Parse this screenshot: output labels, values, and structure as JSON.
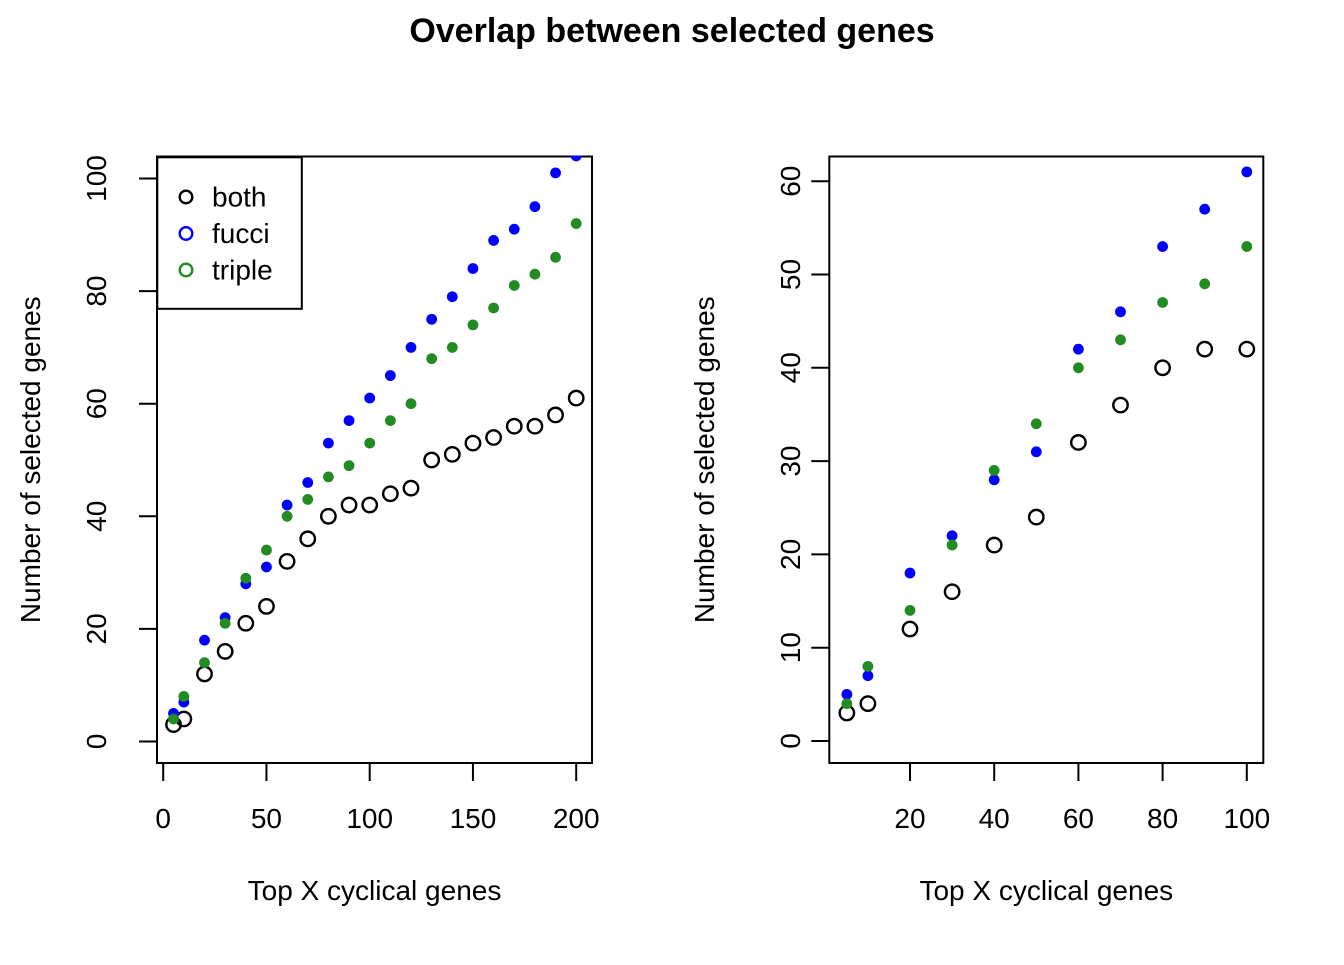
{
  "title": "Overlap between selected genes",
  "colors": {
    "both": "#000000",
    "fucci": "#0000FF",
    "triple": "#228B22"
  },
  "chart_data": [
    {
      "type": "scatter",
      "panel": "left",
      "xlabel": "Top X cyclical genes",
      "ylabel": "Number of selected genes",
      "x": [
        5,
        10,
        20,
        30,
        40,
        50,
        60,
        70,
        80,
        90,
        100,
        110,
        120,
        130,
        140,
        150,
        160,
        170,
        180,
        190,
        200
      ],
      "series": [
        {
          "name": "both",
          "color": "#000000",
          "plot_marker": "open-circle",
          "values": [
            3,
            4,
            12,
            16,
            21,
            24,
            32,
            36,
            40,
            42,
            42,
            44,
            45,
            50,
            51,
            53,
            54,
            56,
            56,
            58,
            61
          ]
        },
        {
          "name": "fucci",
          "color": "#0000FF",
          "plot_marker": "filled-circle",
          "values": [
            5,
            7,
            18,
            22,
            28,
            31,
            42,
            46,
            53,
            57,
            61,
            65,
            70,
            75,
            79,
            84,
            89,
            91,
            95,
            101,
            104
          ]
        },
        {
          "name": "triple",
          "color": "#228B22",
          "plot_marker": "filled-circle",
          "values": [
            4,
            8,
            14,
            21,
            29,
            34,
            40,
            43,
            47,
            49,
            53,
            57,
            60,
            68,
            70,
            74,
            77,
            81,
            83,
            86,
            92
          ]
        }
      ],
      "xticks": [
        0,
        50,
        100,
        150,
        200
      ],
      "yticks": [
        0,
        20,
        40,
        60,
        80,
        100
      ],
      "xlim": [
        0,
        200
      ],
      "ylim": [
        0,
        104
      ],
      "grid": false,
      "legend": {
        "position": "top-left",
        "marker": "open-circle",
        "entries": [
          {
            "label": "both",
            "color": "#000000"
          },
          {
            "label": "fucci",
            "color": "#0000FF"
          },
          {
            "label": "triple",
            "color": "#228B22"
          }
        ]
      }
    },
    {
      "type": "scatter",
      "panel": "right",
      "xlabel": "Top X cyclical genes",
      "ylabel": "Number of selected genes",
      "x": [
        5,
        10,
        20,
        30,
        40,
        50,
        60,
        70,
        80,
        90,
        100
      ],
      "series": [
        {
          "name": "both",
          "color": "#000000",
          "plot_marker": "open-circle",
          "values": [
            3,
            4,
            12,
            16,
            21,
            24,
            32,
            36,
            40,
            42,
            42
          ]
        },
        {
          "name": "fucci",
          "color": "#0000FF",
          "plot_marker": "filled-circle",
          "values": [
            5,
            7,
            18,
            22,
            28,
            31,
            42,
            46,
            53,
            57,
            61
          ]
        },
        {
          "name": "triple",
          "color": "#228B22",
          "plot_marker": "filled-circle",
          "values": [
            4,
            8,
            14,
            21,
            29,
            34,
            40,
            43,
            47,
            49,
            53
          ]
        }
      ],
      "xticks": [
        20,
        40,
        60,
        80,
        100
      ],
      "yticks": [
        0,
        10,
        20,
        30,
        40,
        50,
        60
      ],
      "xlim": [
        5,
        100
      ],
      "ylim": [
        0,
        61
      ],
      "grid": false,
      "legend": null
    }
  ]
}
